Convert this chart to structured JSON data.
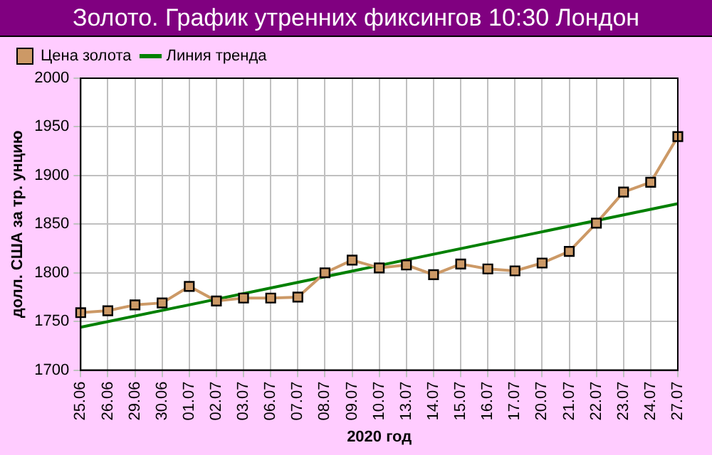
{
  "chart_data": {
    "type": "line",
    "title": "Золото. График утренних фиксингов 10:30 Лондон",
    "xlabel": "2020 год",
    "ylabel": "долл. США за тр. унцию",
    "categories": [
      "25.06",
      "26.06",
      "29.06",
      "30.06",
      "01.07",
      "02.07",
      "03.07",
      "06.07",
      "07.07",
      "08.07",
      "09.07",
      "10.07",
      "13.07",
      "14.07",
      "15.07",
      "16.07",
      "17.07",
      "20.07",
      "21.07",
      "22.07",
      "23.07",
      "24.07",
      "27.07"
    ],
    "series": [
      {
        "name": "Цена золота",
        "color": "#cc9966",
        "marker": "square",
        "values": [
          1759,
          1761,
          1767,
          1769,
          1786,
          1771,
          1774,
          1774,
          1775,
          1800,
          1813,
          1805,
          1808,
          1798,
          1809,
          1804,
          1802,
          1810,
          1822,
          1851,
          1883,
          1893,
          1940
        ]
      },
      {
        "name": "Линия тренда",
        "color": "#008000",
        "marker": "none",
        "x": [
          "25.06",
          "27.07"
        ],
        "values": [
          1744,
          1871
        ]
      }
    ],
    "ylim": [
      1700,
      2000
    ],
    "yticks": [
      1700,
      1750,
      1800,
      1850,
      1900,
      1950,
      2000
    ],
    "grid": true,
    "legend": "top left"
  }
}
